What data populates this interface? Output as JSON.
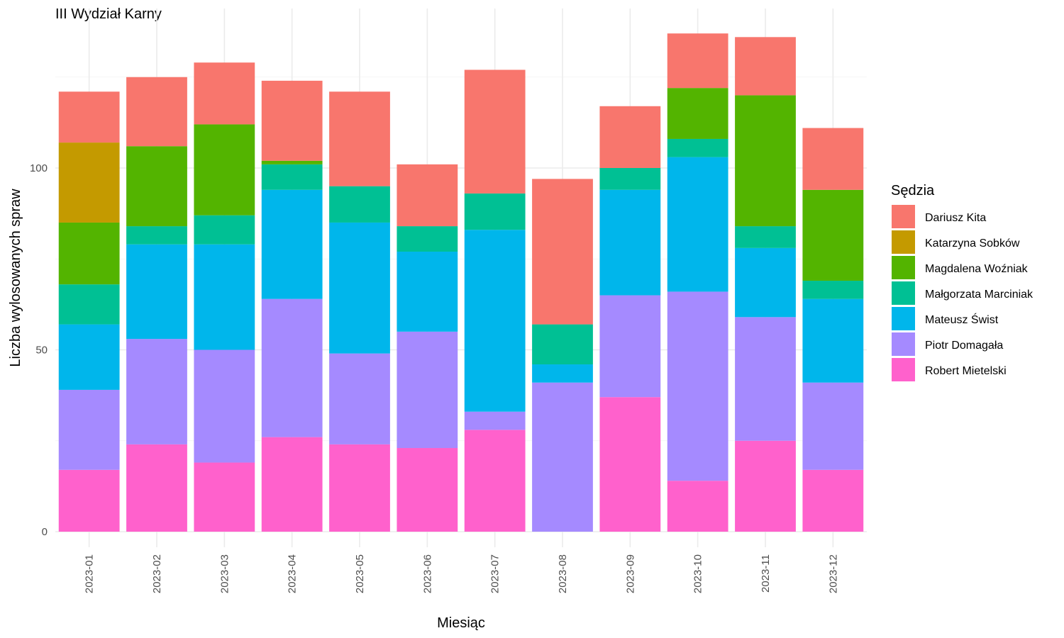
{
  "chart_data": {
    "type": "bar",
    "stacked": true,
    "title": "III Wydział Karny",
    "xlabel": "Miesiąc",
    "ylabel": "Liczba wylosowanych spraw",
    "ylim": [
      0,
      140
    ],
    "yticks": [
      0,
      50,
      100
    ],
    "grid": true,
    "legend_title": "Sędzia",
    "legend_position": "right",
    "categories": [
      "2023-01",
      "2023-02",
      "2023-03",
      "2023-04",
      "2023-05",
      "2023-06",
      "2023-07",
      "2023-08",
      "2023-09",
      "2023-10",
      "2023-11",
      "2023-12"
    ],
    "series": [
      {
        "name": "Robert Mietelski",
        "color": "#FF61CC",
        "values": [
          17,
          24,
          19,
          26,
          24,
          23,
          28,
          0,
          37,
          14,
          25,
          17
        ]
      },
      {
        "name": "Piotr Domagała",
        "color": "#A58AFF",
        "values": [
          22,
          29,
          31,
          38,
          25,
          32,
          5,
          41,
          28,
          52,
          34,
          24
        ]
      },
      {
        "name": "Mateusz Świst",
        "color": "#00B6EB",
        "values": [
          18,
          26,
          29,
          30,
          36,
          22,
          50,
          5,
          29,
          37,
          19,
          23
        ]
      },
      {
        "name": "Małgorzata Marciniak",
        "color": "#00C094",
        "values": [
          11,
          5,
          8,
          7,
          10,
          7,
          10,
          11,
          6,
          5,
          6,
          5
        ]
      },
      {
        "name": "Magdalena Woźniak",
        "color": "#53B400",
        "values": [
          17,
          22,
          25,
          1,
          0,
          0,
          0,
          0,
          0,
          14,
          36,
          25
        ]
      },
      {
        "name": "Katarzyna Sobków",
        "color": "#C49A00",
        "values": [
          22,
          0,
          0,
          0,
          0,
          0,
          0,
          0,
          0,
          0,
          0,
          0
        ]
      },
      {
        "name": "Dariusz Kita",
        "color": "#F8766D",
        "values": [
          14,
          19,
          17,
          22,
          26,
          17,
          34,
          40,
          17,
          15,
          16,
          17
        ]
      }
    ]
  }
}
